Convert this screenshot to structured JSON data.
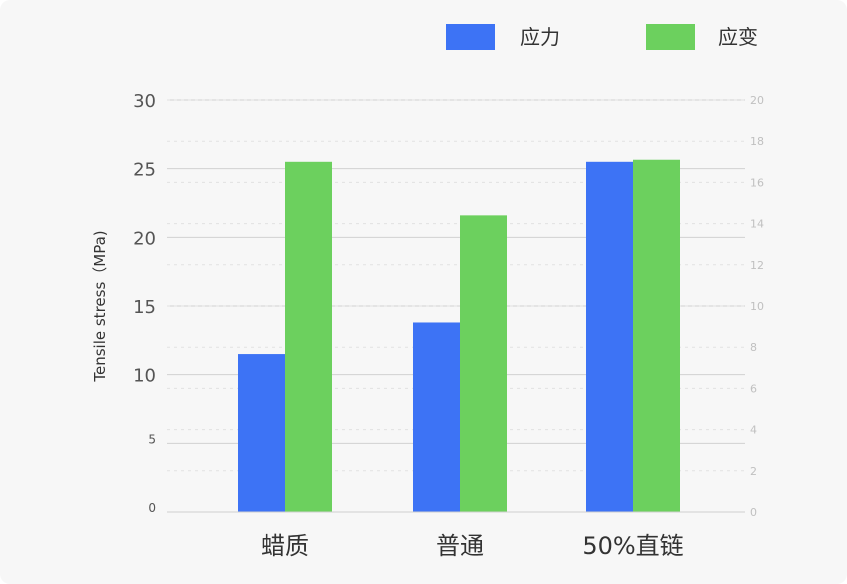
{
  "chart_data": {
    "type": "bar",
    "categories": [
      "蜡质",
      "普通",
      "50%直链"
    ],
    "series": [
      {
        "name": "应力",
        "color": "#3d73f5",
        "axis": "left",
        "values": [
          11.5,
          13.8,
          25.5
        ]
      },
      {
        "name": "应变",
        "color": "#6cd05e",
        "axis": "right",
        "values": [
          17.0,
          14.4,
          17.1
        ]
      }
    ],
    "ylabel": "Tensile stress（MPa)",
    "ylim": [
      0,
      30
    ],
    "y2lim": [
      0,
      20
    ],
    "left_ticks": [
      "0",
      "5",
      "10",
      "15",
      "20",
      "25",
      "30"
    ],
    "right_ticks": [
      "0",
      "2",
      "4",
      "6",
      "8",
      "10",
      "12",
      "14",
      "16",
      "18",
      "20"
    ],
    "legend_position": "top-right",
    "grid": true
  }
}
